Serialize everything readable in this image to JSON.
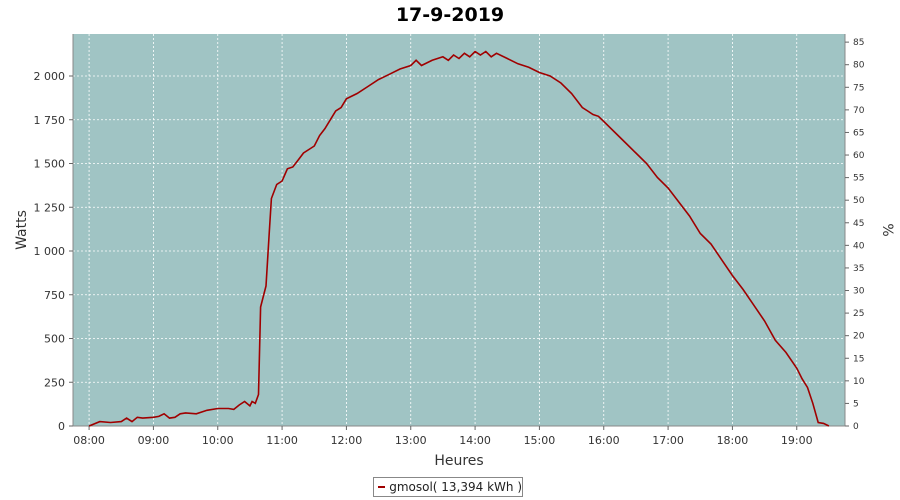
{
  "chart_data": {
    "type": "line",
    "title": "17-9-2019",
    "xlabel": "Heures",
    "ylabel": "Watts",
    "y2label": "%",
    "x_tick_labels": [
      "08:00",
      "09:00",
      "10:00",
      "11:00",
      "12:00",
      "13:00",
      "14:00",
      "15:00",
      "16:00",
      "17:00",
      "18:00",
      "19:00"
    ],
    "y_tick_labels": [
      "0",
      "250",
      "500",
      "750",
      "1 000",
      "1 250",
      "1 500",
      "1 750",
      "2 000"
    ],
    "y2_tick_labels": [
      "0",
      "5",
      "10",
      "15",
      "20",
      "25",
      "30",
      "35",
      "40",
      "45",
      "50",
      "55",
      "60",
      "65",
      "70",
      "75",
      "80",
      "85"
    ],
    "ylim": [
      0,
      2240
    ],
    "y2lim": [
      0,
      86.8
    ],
    "xlim": [
      "07:45",
      "19:45"
    ],
    "grid": true,
    "plot_background": "#a0c4c4",
    "series": [
      {
        "name": "gmosol( 13,394 kWh )",
        "color": "#a00000",
        "x": [
          "08:00",
          "08:10",
          "08:20",
          "08:30",
          "08:35",
          "08:40",
          "08:45",
          "08:50",
          "09:00",
          "09:05",
          "09:10",
          "09:15",
          "09:20",
          "09:25",
          "09:30",
          "09:40",
          "09:50",
          "10:00",
          "10:10",
          "10:15",
          "10:20",
          "10:25",
          "10:30",
          "10:32",
          "10:35",
          "10:38",
          "10:40",
          "10:45",
          "10:48",
          "10:50",
          "10:55",
          "11:00",
          "11:05",
          "11:10",
          "11:15",
          "11:20",
          "11:25",
          "11:30",
          "11:35",
          "11:40",
          "11:45",
          "11:50",
          "11:55",
          "12:00",
          "12:10",
          "12:20",
          "12:30",
          "12:40",
          "12:50",
          "13:00",
          "13:05",
          "13:10",
          "13:20",
          "13:30",
          "13:35",
          "13:40",
          "13:45",
          "13:50",
          "13:55",
          "14:00",
          "14:05",
          "14:10",
          "14:15",
          "14:20",
          "14:30",
          "14:40",
          "14:50",
          "15:00",
          "15:10",
          "15:20",
          "15:30",
          "15:40",
          "15:45",
          "15:50",
          "15:55",
          "16:00",
          "16:10",
          "16:20",
          "16:30",
          "16:40",
          "16:50",
          "17:00",
          "17:10",
          "17:20",
          "17:30",
          "17:40",
          "17:50",
          "18:00",
          "18:10",
          "18:20",
          "18:30",
          "18:40",
          "18:50",
          "19:00",
          "19:05",
          "19:10",
          "19:15",
          "19:20",
          "19:25",
          "19:30"
        ],
        "y": [
          0,
          25,
          20,
          25,
          45,
          25,
          50,
          45,
          50,
          55,
          70,
          45,
          50,
          70,
          75,
          70,
          90,
          100,
          100,
          95,
          120,
          140,
          115,
          140,
          130,
          180,
          680,
          800,
          1100,
          1300,
          1380,
          1400,
          1470,
          1480,
          1520,
          1560,
          1580,
          1600,
          1660,
          1700,
          1750,
          1800,
          1820,
          1870,
          1900,
          1940,
          1980,
          2010,
          2040,
          2060,
          2090,
          2060,
          2090,
          2110,
          2090,
          2120,
          2100,
          2130,
          2110,
          2140,
          2120,
          2140,
          2110,
          2130,
          2100,
          2070,
          2050,
          2020,
          2000,
          1960,
          1900,
          1820,
          1800,
          1780,
          1770,
          1740,
          1680,
          1620,
          1560,
          1500,
          1420,
          1360,
          1280,
          1200,
          1100,
          1040,
          950,
          860,
          780,
          690,
          600,
          490,
          420,
          330,
          270,
          220,
          130,
          20,
          15,
          0
        ]
      }
    ]
  }
}
